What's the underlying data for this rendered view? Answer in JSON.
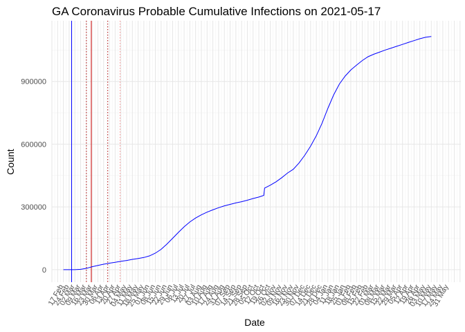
{
  "chart_data": {
    "type": "line",
    "title": "GA Coronavirus Probable Cumulative Infections on 2021-05-17",
    "xlabel": "Date",
    "ylabel": "Count",
    "ylim": [
      -60000,
      1190000
    ],
    "yticks": [
      0,
      300000,
      600000,
      900000
    ],
    "ytick_labels": [
      "0",
      "300000",
      "600000",
      "900000"
    ],
    "x_start": "2020-02-17",
    "xtick_step_days": 7,
    "xtick_labels": [
      "17 Feb",
      "24 Feb",
      "02 Mar",
      "09 Mar",
      "16 Mar",
      "23 Mar",
      "30 Mar",
      "06 Apr",
      "13 Apr",
      "20 Apr",
      "27 Apr",
      "04 May",
      "11 May",
      "18 May",
      "25 May",
      "01 Jun",
      "08 Jun",
      "15 Jun",
      "22 Jun",
      "29 Jun",
      "06 Jul",
      "13 Jul",
      "20 Jul",
      "27 Jul",
      "03 Aug",
      "10 Aug",
      "17 Aug",
      "24 Aug",
      "31 Aug",
      "07 Sep",
      "14 Sep",
      "21 Sep",
      "28 Sep",
      "05 Oct",
      "12 Oct",
      "19 Oct",
      "26 Oct",
      "02 Nov",
      "09 Nov",
      "16 Nov",
      "23 Nov",
      "30 Nov",
      "07 Dec",
      "14 Dec",
      "21 Dec",
      "28 Dec",
      "04 Jan",
      "11 Jan",
      "18 Jan",
      "25 Jan",
      "01 Feb",
      "08 Feb",
      "15 Feb",
      "22 Feb",
      "01 Mar",
      "08 Mar",
      "15 Mar",
      "22 Mar",
      "29 Mar",
      "05 Apr",
      "12 Apr",
      "19 Apr",
      "26 Apr",
      "03 May",
      "10 May",
      "17 May",
      "24 May",
      "31 May"
    ],
    "xlim_days": [
      -14,
      484
    ],
    "series": [
      {
        "name": "Probable cumulative infections",
        "color": "#0000ff",
        "points": [
          {
            "day": 0,
            "value": 0
          },
          {
            "day": 14,
            "value": 0
          },
          {
            "day": 21,
            "value": 1500
          },
          {
            "day": 28,
            "value": 6000
          },
          {
            "day": 35,
            "value": 14000
          },
          {
            "day": 42,
            "value": 20000
          },
          {
            "day": 49,
            "value": 26000
          },
          {
            "day": 56,
            "value": 31000
          },
          {
            "day": 63,
            "value": 35000
          },
          {
            "day": 70,
            "value": 40000
          },
          {
            "day": 77,
            "value": 44000
          },
          {
            "day": 84,
            "value": 49000
          },
          {
            "day": 91,
            "value": 53000
          },
          {
            "day": 98,
            "value": 58000
          },
          {
            "day": 105,
            "value": 66000
          },
          {
            "day": 112,
            "value": 79000
          },
          {
            "day": 119,
            "value": 97000
          },
          {
            "day": 126,
            "value": 122000
          },
          {
            "day": 133,
            "value": 150000
          },
          {
            "day": 140,
            "value": 178000
          },
          {
            "day": 147,
            "value": 205000
          },
          {
            "day": 154,
            "value": 228000
          },
          {
            "day": 161,
            "value": 247000
          },
          {
            "day": 168,
            "value": 262000
          },
          {
            "day": 175,
            "value": 275000
          },
          {
            "day": 182,
            "value": 286000
          },
          {
            "day": 189,
            "value": 296000
          },
          {
            "day": 196,
            "value": 305000
          },
          {
            "day": 203,
            "value": 312000
          },
          {
            "day": 210,
            "value": 319000
          },
          {
            "day": 217,
            "value": 325000
          },
          {
            "day": 224,
            "value": 332000
          },
          {
            "day": 231,
            "value": 340000
          },
          {
            "day": 238,
            "value": 347000
          },
          {
            "day": 244,
            "value": 355000
          },
          {
            "day": 245,
            "value": 390000
          },
          {
            "day": 252,
            "value": 404000
          },
          {
            "day": 259,
            "value": 420000
          },
          {
            "day": 266,
            "value": 440000
          },
          {
            "day": 273,
            "value": 462000
          },
          {
            "day": 280,
            "value": 480000
          },
          {
            "day": 287,
            "value": 510000
          },
          {
            "day": 294,
            "value": 547000
          },
          {
            "day": 301,
            "value": 590000
          },
          {
            "day": 308,
            "value": 640000
          },
          {
            "day": 315,
            "value": 700000
          },
          {
            "day": 322,
            "value": 770000
          },
          {
            "day": 329,
            "value": 835000
          },
          {
            "day": 336,
            "value": 887000
          },
          {
            "day": 343,
            "value": 925000
          },
          {
            "day": 350,
            "value": 955000
          },
          {
            "day": 357,
            "value": 978000
          },
          {
            "day": 364,
            "value": 1000000
          },
          {
            "day": 371,
            "value": 1018000
          },
          {
            "day": 378,
            "value": 1030000
          },
          {
            "day": 385,
            "value": 1040000
          },
          {
            "day": 392,
            "value": 1050000
          },
          {
            "day": 399,
            "value": 1059000
          },
          {
            "day": 406,
            "value": 1068000
          },
          {
            "day": 413,
            "value": 1077000
          },
          {
            "day": 420,
            "value": 1086000
          },
          {
            "day": 427,
            "value": 1095000
          },
          {
            "day": 434,
            "value": 1104000
          },
          {
            "day": 441,
            "value": 1111000
          },
          {
            "day": 448,
            "value": 1115000
          }
        ]
      }
    ],
    "vlines": [
      {
        "name": "solid-blue",
        "day": 10,
        "color": "#0000ff",
        "style": "solid"
      },
      {
        "name": "dotted-darkred-1",
        "day": 28,
        "color": "#aa0000",
        "style": "dotted"
      },
      {
        "name": "solid-red",
        "day": 34,
        "color": "#cc0000",
        "style": "solid"
      },
      {
        "name": "dotted-darkred-2",
        "day": 54,
        "color": "#aa0000",
        "style": "dotted"
      },
      {
        "name": "dotted-lightred",
        "day": 69,
        "color": "#ff8888",
        "style": "dotted"
      }
    ]
  }
}
